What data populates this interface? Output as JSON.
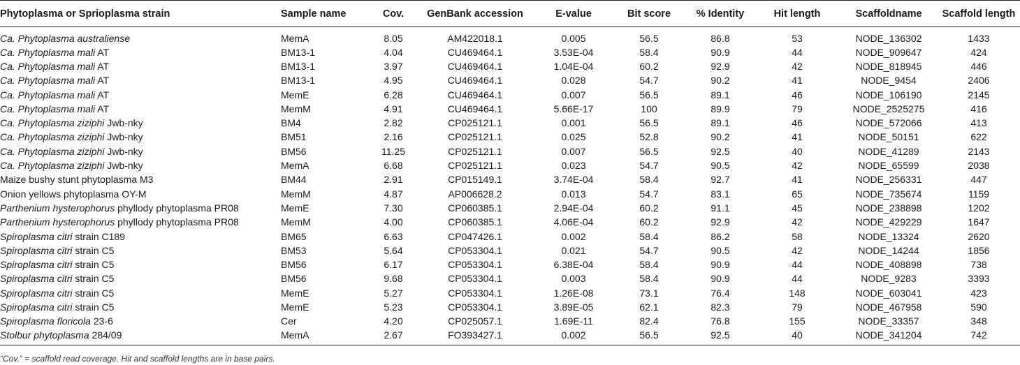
{
  "table": {
    "columns": [
      "Phytoplasma or Sprioplasma strain",
      "Sample name",
      "Cov.",
      "GenBank accession",
      "E-value",
      "Bit score",
      "% Identity",
      "Hit length",
      "Scaffoldname",
      "Scaffold length"
    ],
    "rows": [
      {
        "strain_italic": "Ca. Phytoplasma australiense",
        "strain_rest": "",
        "sample": "MemA",
        "cov": "8.05",
        "accession": "AM422018.1",
        "evalue": "0.005",
        "bitscore": "56.5",
        "identity": "86.8",
        "hitlength": "53",
        "scaffold": "NODE_136302",
        "scaffold_length": "1433"
      },
      {
        "strain_italic": "Ca. Phytoplasma mali",
        "strain_rest": " AT",
        "sample": "BM13-1",
        "cov": "4.04",
        "accession": "CU469464.1",
        "evalue": "3.53E-04",
        "bitscore": "58.4",
        "identity": "90.9",
        "hitlength": "44",
        "scaffold": "NODE_909647",
        "scaffold_length": "424"
      },
      {
        "strain_italic": "Ca. Phytoplasma mali",
        "strain_rest": " AT",
        "sample": "BM13-1",
        "cov": "3.97",
        "accession": "CU469464.1",
        "evalue": "1.04E-04",
        "bitscore": "60.2",
        "identity": "92.9",
        "hitlength": "42",
        "scaffold": "NODE_818945",
        "scaffold_length": "446"
      },
      {
        "strain_italic": "Ca. Phytoplasma mali",
        "strain_rest": " AT",
        "sample": "BM13-1",
        "cov": "4.95",
        "accession": "CU469464.1",
        "evalue": "0.028",
        "bitscore": "54.7",
        "identity": "90.2",
        "hitlength": "41",
        "scaffold": "NODE_9454",
        "scaffold_length": "2406"
      },
      {
        "strain_italic": "Ca. Phytoplasma mali",
        "strain_rest": " AT",
        "sample": "MemE",
        "cov": "6.28",
        "accession": "CU469464.1",
        "evalue": "0.007",
        "bitscore": "56.5",
        "identity": "89.1",
        "hitlength": "46",
        "scaffold": "NODE_106190",
        "scaffold_length": "2145"
      },
      {
        "strain_italic": "Ca. Phytoplasma mali",
        "strain_rest": " AT",
        "sample": "MemM",
        "cov": "4.91",
        "accession": "CU469464.1",
        "evalue": "5.66E-17",
        "bitscore": "100",
        "identity": "89.9",
        "hitlength": "79",
        "scaffold": "NODE_2525275",
        "scaffold_length": "416"
      },
      {
        "strain_italic": "Ca. Phytoplasma ziziphi",
        "strain_rest": " Jwb-nky",
        "sample": "BM4",
        "cov": "2.82",
        "accession": "CP025121.1",
        "evalue": "0.001",
        "bitscore": "56.5",
        "identity": "89.1",
        "hitlength": "46",
        "scaffold": "NODE_572066",
        "scaffold_length": "413"
      },
      {
        "strain_italic": "Ca. Phytoplasma ziziphi",
        "strain_rest": " Jwb-nky",
        "sample": "BM51",
        "cov": "2.16",
        "accession": "CP025121.1",
        "evalue": "0.025",
        "bitscore": "52.8",
        "identity": "90.2",
        "hitlength": "41",
        "scaffold": "NODE_50151",
        "scaffold_length": "622"
      },
      {
        "strain_italic": "Ca. Phytoplasma ziziphi",
        "strain_rest": " Jwb-nky",
        "sample": "BM56",
        "cov": "11.25",
        "accession": "CP025121.1",
        "evalue": "0.007",
        "bitscore": "56.5",
        "identity": "92.5",
        "hitlength": "40",
        "scaffold": "NODE_41289",
        "scaffold_length": "2143"
      },
      {
        "strain_italic": "Ca. Phytoplasma ziziphi",
        "strain_rest": " Jwb-nky",
        "sample": "MemA",
        "cov": "6.68",
        "accession": "CP025121.1",
        "evalue": "0.023",
        "bitscore": "54.7",
        "identity": "90.5",
        "hitlength": "42",
        "scaffold": "NODE_65599",
        "scaffold_length": "2038"
      },
      {
        "strain_italic": "",
        "strain_rest": "Maize bushy stunt phytoplasma M3",
        "sample": "BM44",
        "cov": "2.91",
        "accession": "CP015149.1",
        "evalue": "3.74E-04",
        "bitscore": "58.4",
        "identity": "92.7",
        "hitlength": "41",
        "scaffold": "NODE_256331",
        "scaffold_length": "447"
      },
      {
        "strain_italic": "",
        "strain_rest": "Onion yellows phytoplasma OY-M",
        "sample": "MemM",
        "cov": "4.87",
        "accession": "AP006628.2",
        "evalue": "0.013",
        "bitscore": "54.7",
        "identity": "83.1",
        "hitlength": "65",
        "scaffold": "NODE_735674",
        "scaffold_length": "1159"
      },
      {
        "strain_italic": "Parthenium hysterophorus",
        "strain_rest": " phyllody phytoplasma PR08",
        "sample": "MemE",
        "cov": "7.30",
        "accession": "CP060385.1",
        "evalue": "2.94E-04",
        "bitscore": "60.2",
        "identity": "91.1",
        "hitlength": "45",
        "scaffold": "NODE_238898",
        "scaffold_length": "1202"
      },
      {
        "strain_italic": "Parthenium hysterophorus",
        "strain_rest": " phyllody phytoplasma PR08",
        "sample": "MemM",
        "cov": "4.00",
        "accession": "CP060385.1",
        "evalue": "4.06E-04",
        "bitscore": "60.2",
        "identity": "92.9",
        "hitlength": "42",
        "scaffold": "NODE_429229",
        "scaffold_length": "1647"
      },
      {
        "strain_italic": "Spiroplasma citri",
        "strain_rest": " strain C189",
        "sample": "BM65",
        "cov": "6.63",
        "accession": "CP047426.1",
        "evalue": "0.002",
        "bitscore": "58.4",
        "identity": "86.2",
        "hitlength": "58",
        "scaffold": "NODE_13324",
        "scaffold_length": "2620"
      },
      {
        "strain_italic": "Spiroplasma citri",
        "strain_rest": " strain C5",
        "sample": "BM53",
        "cov": "5.64",
        "accession": "CP053304.1",
        "evalue": "0.021",
        "bitscore": "54.7",
        "identity": "90.5",
        "hitlength": "42",
        "scaffold": "NODE_14244",
        "scaffold_length": "1856"
      },
      {
        "strain_italic": "Spiroplasma citri",
        "strain_rest": " strain C5",
        "sample": "BM56",
        "cov": "6.17",
        "accession": "CP053304.1",
        "evalue": "6.38E-04",
        "bitscore": "58.4",
        "identity": "90.9",
        "hitlength": "44",
        "scaffold": "NODE_408898",
        "scaffold_length": "738"
      },
      {
        "strain_italic": "Spiroplasma citri",
        "strain_rest": " strain C5",
        "sample": "BM56",
        "cov": "9.68",
        "accession": "CP053304.1",
        "evalue": "0.003",
        "bitscore": "58.4",
        "identity": "90.9",
        "hitlength": "44",
        "scaffold": "NODE_9283",
        "scaffold_length": "3393"
      },
      {
        "strain_italic": "Spiroplasma citri",
        "strain_rest": " strain C5",
        "sample": "MemE",
        "cov": "5.27",
        "accession": "CP053304.1",
        "evalue": "1.26E-08",
        "bitscore": "73.1",
        "identity": "76.4",
        "hitlength": "148",
        "scaffold": "NODE_603041",
        "scaffold_length": "423"
      },
      {
        "strain_italic": "Spiroplasma citri",
        "strain_rest": " strain C5",
        "sample": "MemE",
        "cov": "5.23",
        "accession": "CP053304.1",
        "evalue": "3.89E-05",
        "bitscore": "62.1",
        "identity": "82.3",
        "hitlength": "79",
        "scaffold": "NODE_467958",
        "scaffold_length": "590"
      },
      {
        "strain_italic": "Spiroplasma floricola",
        "strain_rest": " 23-6",
        "sample": "Cer",
        "cov": "4.20",
        "accession": "CP025057.1",
        "evalue": "1.69E-11",
        "bitscore": "82.4",
        "identity": "76.8",
        "hitlength": "155",
        "scaffold": "NODE_33357",
        "scaffold_length": "348"
      },
      {
        "strain_italic": "Stolbur phytoplasma",
        "strain_rest": " 284/09",
        "sample": "MemA",
        "cov": "2.67",
        "accession": "FO393427.1",
        "evalue": "0.002",
        "bitscore": "56.5",
        "identity": "92.5",
        "hitlength": "40",
        "scaffold": "NODE_341204",
        "scaffold_length": "742"
      }
    ]
  },
  "footnote": "“Cov.” = scaffold read coverage. Hit and scaffold lengths are in base pairs."
}
